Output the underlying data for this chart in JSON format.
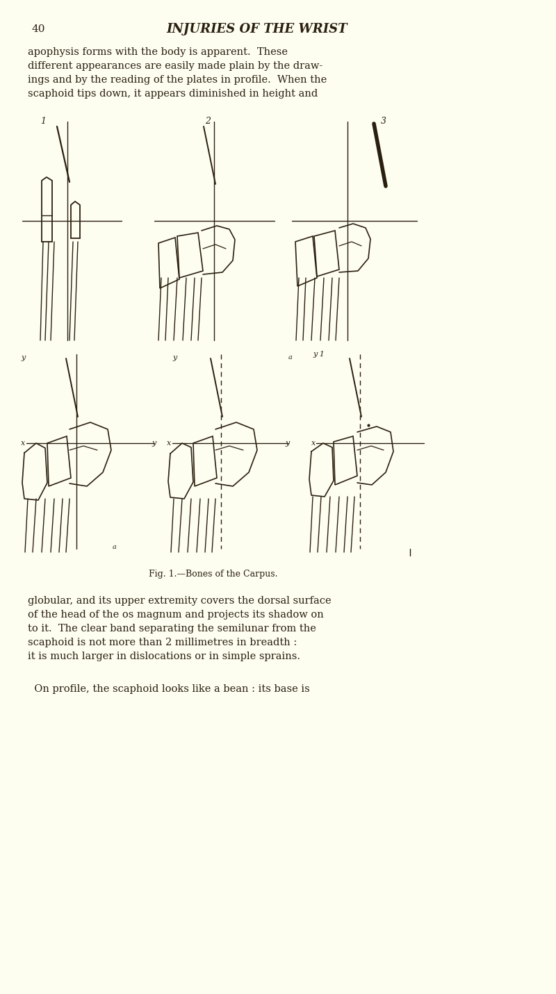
{
  "bg_color": "#FDFDF0",
  "page_number": "40",
  "header_title": "INJURIES OF THE WRIST",
  "header_fontsize": 13,
  "page_num_fontsize": 11,
  "body_text_top": "apophysis forms with the body is apparent.  These\ndifferent appearances are easily made plain by the draw-\nings and by the reading of the plates in profile.  When the\nscaphoid tips down, it appears diminished in height and",
  "body_text_bottom1": "globular, and its upper extremity covers the dorsal surface\nof the head of the os magnum and projects its shadow on\nto it.  The clear band separating the semilunar from the\nscaphoid is not more than 2 millimetres in breadth :\nit is much larger in dislocations or in simple sprains.",
  "body_text_bottom2": "  On profile, the scaphoid looks like a bean : its base is",
  "caption": "Fig. 1.—Bones of the Carpus.",
  "caption_fontsize": 9,
  "body_fontsize": 10.5,
  "text_color": "#2a1f0e",
  "line_color": "#2a1f0e"
}
